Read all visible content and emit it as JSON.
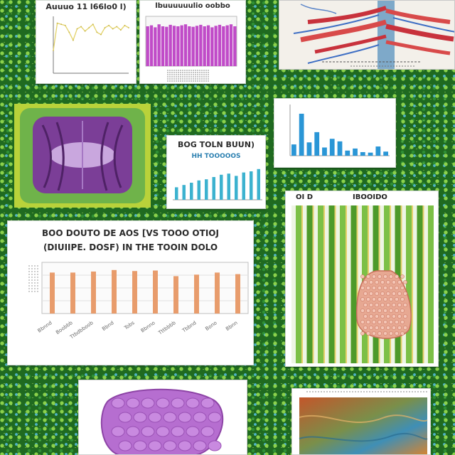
{
  "panels": {
    "top_left_chart": {
      "title": "Auuuo 11 l66lo0 l)"
    },
    "top_mid_chart": {
      "title": "lbuuuuuulio oobbo"
    },
    "big_chart": {
      "title_line1": "BOO DOUTO DE AOS [VS TOOO OTIOJ",
      "title_line2": "(DIUIIPE. DOSF) IN THE TOOIN DOLO"
    },
    "mid_chart": {
      "title_line1": "BOG TOLN BUUN)",
      "title_line2": "HH TOOOOOS"
    },
    "cell_panel": {
      "label_left": "OI D",
      "label_right": "IBOOIDO"
    }
  },
  "colors": {
    "background": "#1f6a20",
    "bar_orange": "#e89c6c",
    "bar_teal": "#3cb2cf",
    "bar_magenta": "#c04bc8",
    "bar_blue": "#2a96d6",
    "line_yellow": "#e3d36a"
  },
  "chart_data": [
    {
      "type": "line",
      "title": "Auuuo 11 l66lo0 l)",
      "x": [
        1,
        2,
        3,
        4,
        5,
        6,
        7,
        8,
        9,
        10,
        11,
        12,
        13,
        14,
        15,
        16,
        17,
        18,
        19,
        20
      ],
      "series": [
        {
          "values": [
            40,
            88,
            86,
            84,
            72,
            58,
            78,
            82,
            74,
            80,
            86,
            72,
            68,
            80,
            84,
            78,
            82,
            76,
            84,
            80
          ]
        }
      ],
      "ylim": [
        0,
        100
      ]
    },
    {
      "type": "bar",
      "title": "lbuuuuuulio oobbo",
      "values": [
        80,
        82,
        78,
        84,
        80,
        79,
        83,
        81,
        80,
        82,
        84,
        80,
        79,
        81,
        83,
        80,
        82,
        78,
        81,
        83,
        80,
        82,
        84,
        80
      ],
      "ylim": [
        0,
        100
      ]
    },
    {
      "type": "bar",
      "title": "BOO DOUTO DE AOS [VS TOOO OTIOJ (DIUIIPE. DOSF) IN THE TOOIN DOLO",
      "categories": [
        "Bbnnd",
        "Boobbb",
        "Ttbdbboob",
        "Bbnd",
        "Tobs",
        "Bbnno",
        "Tttbbbb",
        "Tbbnd",
        "Bono",
        "Bbnn"
      ],
      "values": [
        80,
        80,
        82,
        85,
        83,
        84,
        73,
        76,
        80,
        77
      ],
      "ylim": [
        0,
        100
      ],
      "grid": true
    },
    {
      "type": "bar",
      "title": "BOG TOLN BUUN) HH TOOOOOS",
      "values": [
        22,
        26,
        30,
        34,
        36,
        40,
        44,
        46,
        42,
        48,
        50,
        54
      ],
      "ylim": [
        0,
        60
      ]
    },
    {
      "type": "bar",
      "values": [
        22,
        82,
        26,
        46,
        16,
        33,
        28,
        10,
        14,
        7,
        6,
        18,
        8
      ],
      "ylim": [
        0,
        100
      ]
    }
  ]
}
